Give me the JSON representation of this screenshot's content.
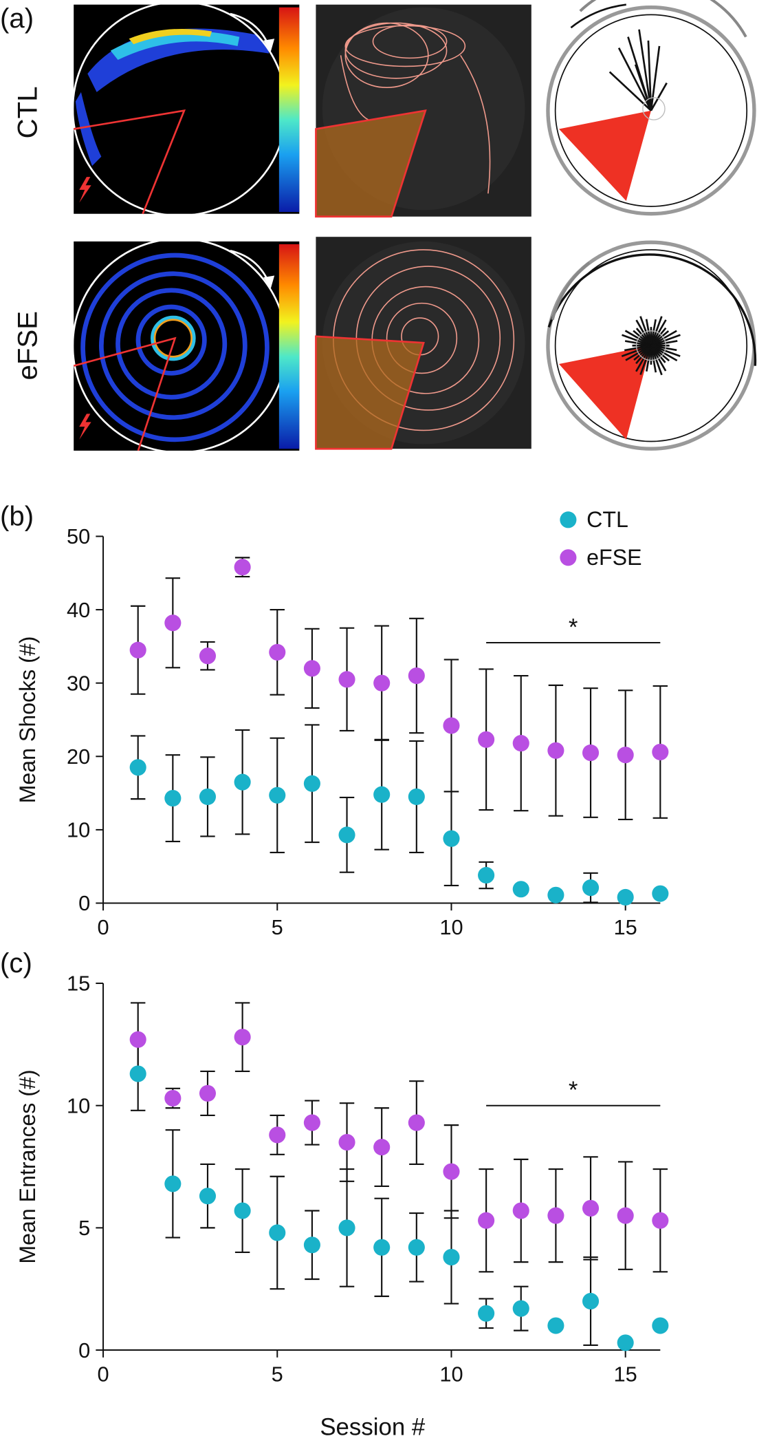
{
  "panel_a": {
    "label": "(a)",
    "rows": [
      "CTL",
      "eFSE"
    ]
  },
  "chart_data": [
    {
      "type": "scatter",
      "panel_label": "(b)",
      "ylabel": "Mean Shocks (#)",
      "x": [
        1,
        2,
        3,
        4,
        5,
        6,
        7,
        8,
        9,
        10,
        11,
        12,
        13,
        14,
        15,
        16
      ],
      "xlim": [
        0,
        16
      ],
      "xticks": [
        0,
        5,
        10,
        15
      ],
      "ylim": [
        0,
        50
      ],
      "yticks": [
        0,
        10,
        20,
        30,
        40,
        50
      ],
      "legend": "upper right",
      "series": [
        {
          "name": "CTL",
          "color": "#1ab2c9",
          "values": [
            18.5,
            14.3,
            14.5,
            16.5,
            14.7,
            16.3,
            9.3,
            14.8,
            14.5,
            8.8,
            3.8,
            1.9,
            1.1,
            2.1,
            0.8,
            1.3
          ],
          "errors": [
            4.3,
            5.9,
            5.4,
            7.1,
            7.8,
            8.0,
            5.1,
            7.5,
            7.6,
            6.4,
            1.8,
            0.3,
            0.3,
            2.0,
            0.2,
            0.3
          ]
        },
        {
          "name": "eFSE",
          "color": "#b94fe2",
          "values": [
            34.5,
            38.2,
            33.7,
            45.8,
            34.2,
            32.0,
            30.5,
            30.0,
            31.0,
            24.2,
            22.3,
            21.8,
            20.8,
            20.5,
            20.2,
            20.6
          ],
          "errors": [
            6.0,
            6.1,
            1.9,
            1.3,
            5.8,
            5.4,
            7.0,
            7.8,
            7.8,
            9.0,
            9.6,
            9.2,
            8.9,
            8.8,
            8.8,
            9.0
          ]
        }
      ],
      "annotations": [
        {
          "text": "*",
          "x": [
            11,
            16
          ],
          "y": 35.5
        }
      ]
    },
    {
      "type": "scatter",
      "panel_label": "(c)",
      "ylabel": "Mean Entrances (#)",
      "xlabel": "Session #",
      "x": [
        1,
        2,
        3,
        4,
        5,
        6,
        7,
        8,
        9,
        10,
        11,
        12,
        13,
        14,
        15,
        16
      ],
      "xlim": [
        0,
        16
      ],
      "xticks": [
        0,
        5,
        10,
        15
      ],
      "ylim": [
        0,
        15
      ],
      "yticks": [
        0,
        5,
        10,
        15
      ],
      "series": [
        {
          "color": "#1ab2c9",
          "values": [
            11.3,
            6.8,
            6.3,
            5.7,
            4.8,
            4.3,
            5.0,
            4.2,
            4.2,
            3.8,
            1.5,
            1.7,
            1.0,
            2.0,
            0.3,
            1.0
          ],
          "errors": [
            1.5,
            2.2,
            1.3,
            1.7,
            2.3,
            1.4,
            2.4,
            2.0,
            1.4,
            1.9,
            0.6,
            0.9,
            0.1,
            1.8,
            0.1,
            0.1
          ]
        },
        {
          "color": "#b94fe2",
          "values": [
            12.7,
            10.3,
            10.5,
            12.8,
            8.8,
            9.3,
            8.5,
            8.3,
            9.3,
            7.3,
            5.3,
            5.7,
            5.5,
            5.8,
            5.5,
            5.3
          ],
          "errors": [
            1.5,
            0.4,
            0.9,
            1.4,
            0.8,
            0.9,
            1.6,
            1.6,
            1.7,
            1.9,
            2.1,
            2.1,
            1.9,
            2.1,
            2.2,
            2.1
          ]
        }
      ],
      "annotations": [
        {
          "text": "*",
          "x": [
            11,
            16
          ],
          "y": 10.0
        }
      ]
    }
  ]
}
